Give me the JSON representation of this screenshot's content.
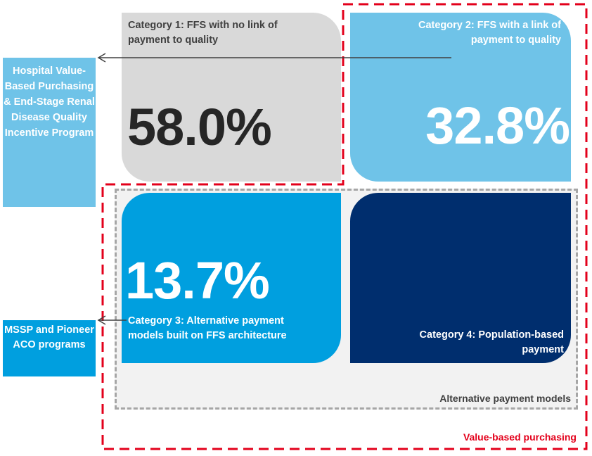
{
  "categories": [
    {
      "id": "cat1",
      "title": "Category 1: FFS with no link of payment to quality",
      "percent": "58.0%",
      "color": "#d9d9d9"
    },
    {
      "id": "cat2",
      "title": "Category 2: FFS with a link of payment to quality",
      "percent": "32.8%",
      "color": "#6fc3e8"
    },
    {
      "id": "cat3",
      "title": "Category 3: Alternative payment models built on FFS architecture",
      "percent": "13.7%",
      "color": "#009fdf"
    },
    {
      "id": "cat4",
      "title": "Category 4: Population-based payment",
      "color": "#002e6e"
    }
  ],
  "groups": {
    "alternative_payment_models": "Alternative payment models",
    "value_based_purchasing": "Value-based purchasing"
  },
  "side_labels": {
    "hospital_programs": "Hospital Value-Based Purchasing & End-Stage Renal Disease Quality Incentive Program",
    "aco_programs": "MSSP and Pioneer ACO programs"
  },
  "colors": {
    "value_based_outline": "#e3001b",
    "apm_outline": "#a6a6a6",
    "arrow": "#404040"
  }
}
